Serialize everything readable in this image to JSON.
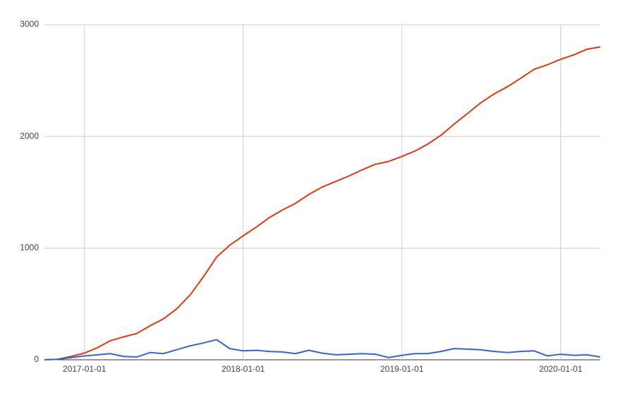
{
  "chart_data": {
    "type": "line",
    "x": [
      "2016-10-01",
      "2016-11-01",
      "2016-12-01",
      "2017-01-01",
      "2017-02-01",
      "2017-03-01",
      "2017-04-01",
      "2017-05-01",
      "2017-06-01",
      "2017-07-01",
      "2017-08-01",
      "2017-09-01",
      "2017-10-01",
      "2017-11-01",
      "2017-12-01",
      "2018-01-01",
      "2018-02-01",
      "2018-03-01",
      "2018-04-01",
      "2018-05-01",
      "2018-06-01",
      "2018-07-01",
      "2018-08-01",
      "2018-09-01",
      "2018-10-01",
      "2018-11-01",
      "2018-12-01",
      "2019-01-01",
      "2019-02-01",
      "2019-03-01",
      "2019-04-01",
      "2019-05-01",
      "2019-06-01",
      "2019-07-01",
      "2019-08-01",
      "2019-09-01",
      "2019-10-01",
      "2019-11-01",
      "2019-12-01",
      "2020-01-01",
      "2020-02-01",
      "2020-03-01",
      "2020-04-01"
    ],
    "series": [
      {
        "color": "#dc3912",
        "values": [
          0,
          5,
          30,
          60,
          110,
          170,
          205,
          235,
          305,
          365,
          455,
          580,
          740,
          920,
          1025,
          1110,
          1190,
          1270,
          1340,
          1400,
          1480,
          1545,
          1595,
          1645,
          1700,
          1750,
          1775,
          1820,
          1870,
          1930,
          2010,
          2110,
          2205,
          2300,
          2380,
          2445,
          2520,
          2600,
          2640,
          2690,
          2730,
          2780,
          2800
        ]
      },
      {
        "color": "#3366cc",
        "values": [
          0,
          5,
          20,
          35,
          45,
          55,
          30,
          25,
          65,
          55,
          90,
          125,
          150,
          180,
          100,
          80,
          85,
          75,
          70,
          55,
          85,
          60,
          45,
          50,
          55,
          50,
          20,
          40,
          55,
          55,
          75,
          100,
          95,
          90,
          75,
          65,
          75,
          80,
          35,
          50,
          40,
          45,
          25
        ]
      }
    ],
    "xlim": [
      "2016-10-01",
      "2020-04-01"
    ],
    "xticks": [
      "2017-01-01",
      "2018-01-01",
      "2019-01-01",
      "2020-01-01"
    ],
    "ylim": [
      0,
      3000
    ],
    "yticks": [
      0,
      1000,
      2000,
      3000
    ],
    "grid": true
  }
}
